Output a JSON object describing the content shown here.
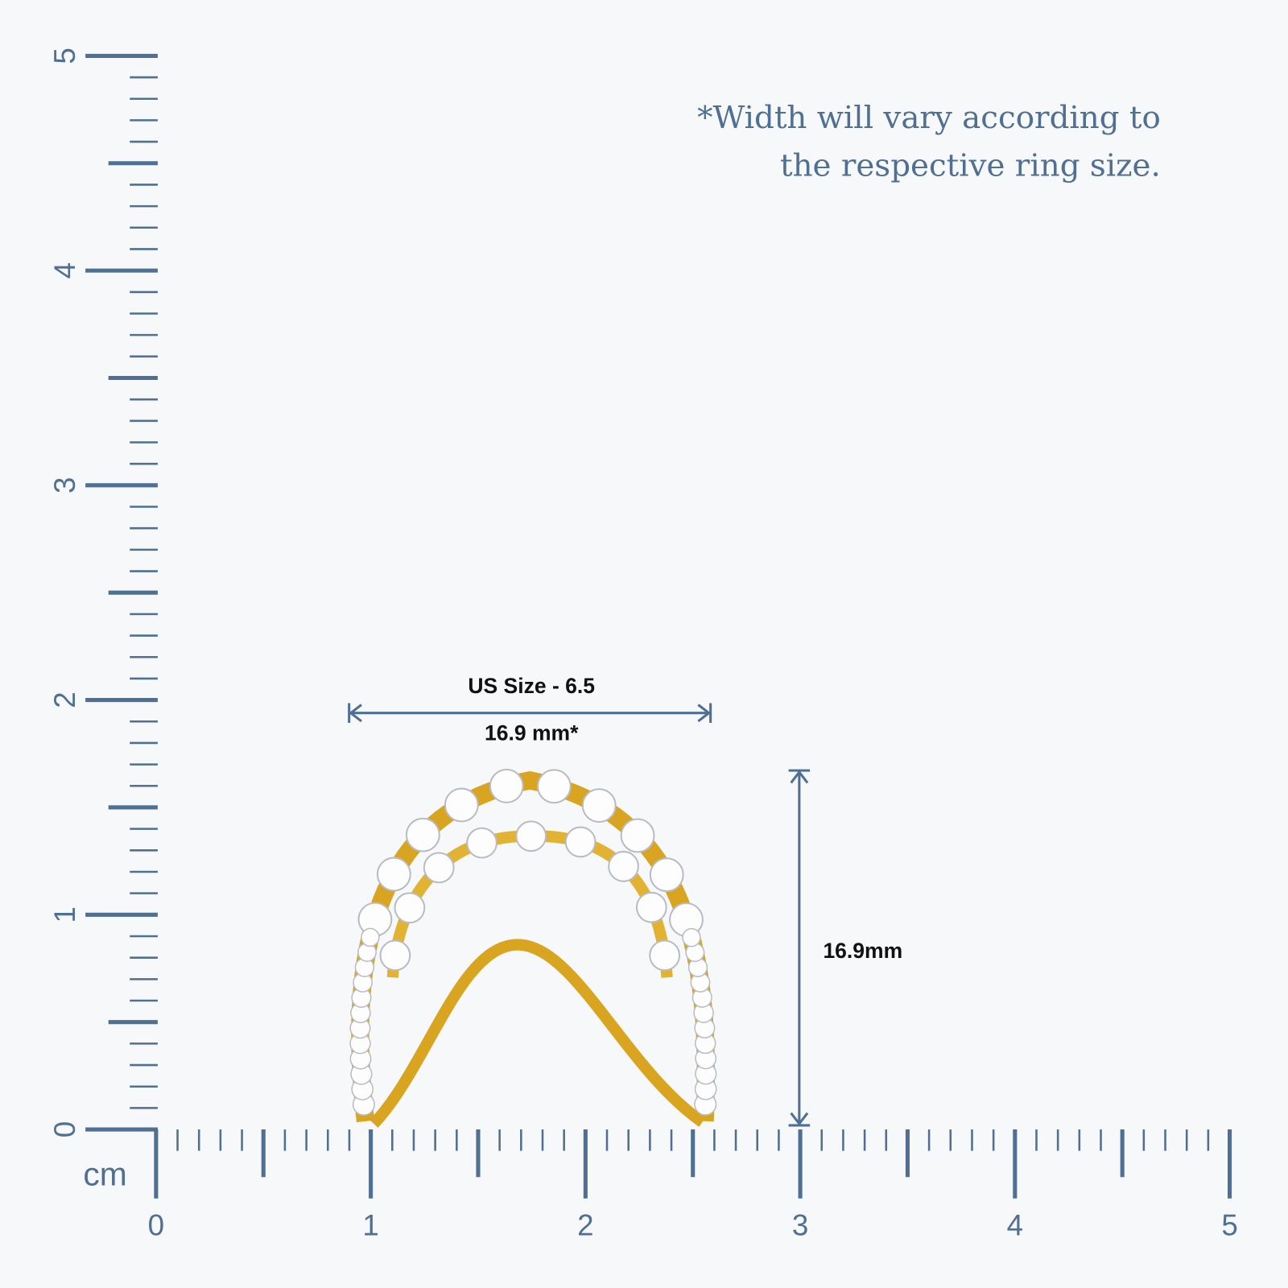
{
  "note": {
    "line1": "*Width will vary according to",
    "line2": "the respective ring size."
  },
  "ruler": {
    "unit": "cm",
    "x_labels": [
      0,
      1,
      2,
      3,
      4,
      5
    ],
    "y_labels": [
      0,
      1,
      2,
      3,
      4,
      5
    ]
  },
  "width_dimension": {
    "title": "US Size - 6.5",
    "label": "16.9 mm*"
  },
  "height_dimension": {
    "label": "16.9mm"
  }
}
